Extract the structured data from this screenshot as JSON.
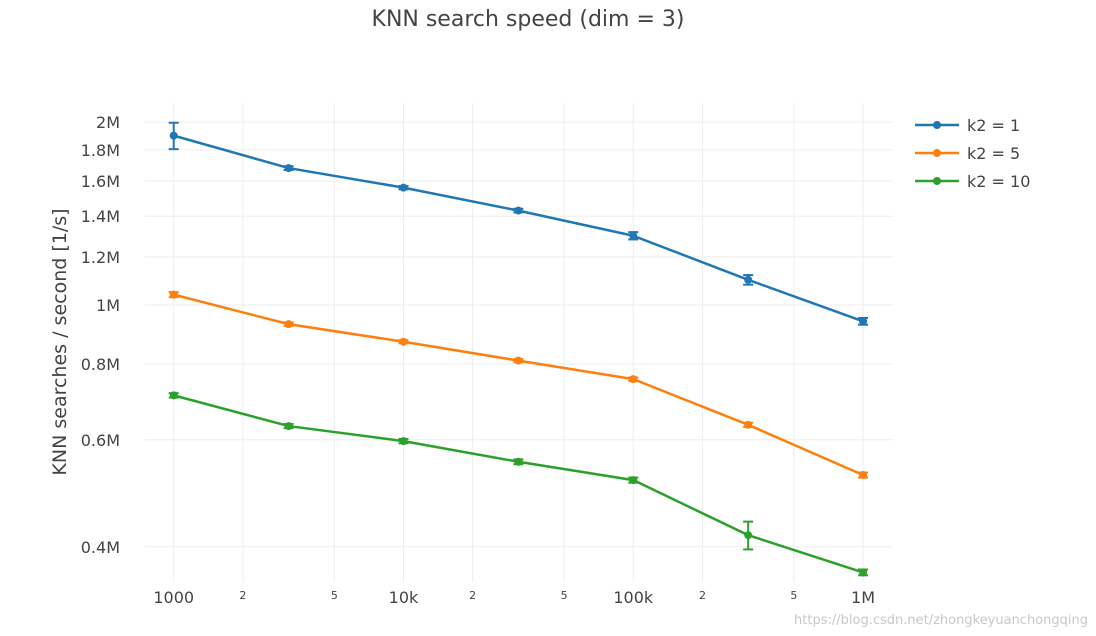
{
  "chart_data": {
    "type": "line",
    "title": "KNN search speed (dim = 3)",
    "xlabel": "",
    "ylabel": "KNN searches / second [1/s]",
    "x_scale": "log",
    "y_scale": "log",
    "xlim": [
      750,
      1350000
    ],
    "ylim": [
      350000,
      2150000
    ],
    "x_ticks": [
      {
        "value": 1000,
        "label": "1000",
        "major": true
      },
      {
        "value": 2000,
        "label": "2",
        "major": false
      },
      {
        "value": 5000,
        "label": "5",
        "major": false
      },
      {
        "value": 10000,
        "label": "10k",
        "major": true
      },
      {
        "value": 20000,
        "label": "2",
        "major": false
      },
      {
        "value": 50000,
        "label": "5",
        "major": false
      },
      {
        "value": 100000,
        "label": "100k",
        "major": true
      },
      {
        "value": 200000,
        "label": "2",
        "major": false
      },
      {
        "value": 500000,
        "label": "5",
        "major": false
      },
      {
        "value": 1000000,
        "label": "1M",
        "major": true
      }
    ],
    "y_ticks": [
      {
        "value": 400000,
        "label": "0.4M"
      },
      {
        "value": 600000,
        "label": "0.6M"
      },
      {
        "value": 800000,
        "label": "0.8M"
      },
      {
        "value": 1000000,
        "label": "1M"
      },
      {
        "value": 1200000,
        "label": "1.2M"
      },
      {
        "value": 1400000,
        "label": "1.4M"
      },
      {
        "value": 1600000,
        "label": "1.6M"
      },
      {
        "value": 1800000,
        "label": "1.8M"
      },
      {
        "value": 2000000,
        "label": "2M"
      }
    ],
    "grid": true,
    "legend_position": "top-right",
    "x": [
      1000,
      3162,
      10000,
      31623,
      100000,
      316228,
      1000000
    ],
    "series": [
      {
        "name": "k2 = 1",
        "color": "#1f77b4",
        "values": [
          1900000,
          1680000,
          1560000,
          1430000,
          1300000,
          1100000,
          940000
        ],
        "errors": [
          95000,
          12000,
          10000,
          10000,
          18000,
          20000,
          12000
        ]
      },
      {
        "name": "k2 = 5",
        "color": "#ff7f0e",
        "values": [
          1040000,
          930000,
          870000,
          810000,
          755000,
          635000,
          525000
        ],
        "errors": [
          10000,
          6000,
          5000,
          5000,
          5000,
          5000,
          5000
        ]
      },
      {
        "name": "k2 = 10",
        "color": "#2ca02c",
        "values": [
          710000,
          632000,
          597000,
          552000,
          515000,
          418000,
          363000
        ],
        "errors": [
          6000,
          5000,
          5000,
          5000,
          5000,
          22000,
          4000
        ]
      }
    ]
  },
  "watermark": "https://blog.csdn.net/zhongkeyuanchongqing"
}
